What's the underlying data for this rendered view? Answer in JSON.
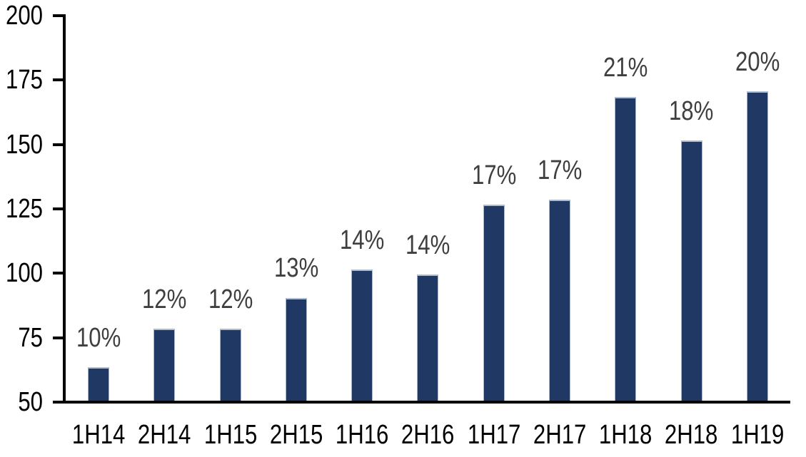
{
  "chart_data": {
    "type": "bar",
    "title": "",
    "xlabel": "",
    "ylabel": "",
    "categories": [
      "1H14",
      "2H14",
      "1H15",
      "2H15",
      "1H16",
      "2H16",
      "1H17",
      "2H17",
      "1H18",
      "2H18",
      "1H19"
    ],
    "values": [
      63,
      78,
      78,
      90,
      101,
      99,
      126,
      128,
      168,
      151,
      170
    ],
    "bar_labels": [
      "10%",
      "12%",
      "12%",
      "13%",
      "14%",
      "14%",
      "17%",
      "17%",
      "21%",
      "18%",
      "20%"
    ],
    "ylim": [
      50,
      200
    ],
    "yticks": [
      200,
      175,
      150,
      125,
      100,
      75,
      50
    ],
    "grid": false,
    "legend": "none",
    "colors": {
      "bar": "#1F3864",
      "bar_edge": "#AEBDD2",
      "data_label": "#3F3F3F",
      "axis_text": "#000000",
      "axis_line": "#000000",
      "background": "#FFFFFF"
    }
  }
}
